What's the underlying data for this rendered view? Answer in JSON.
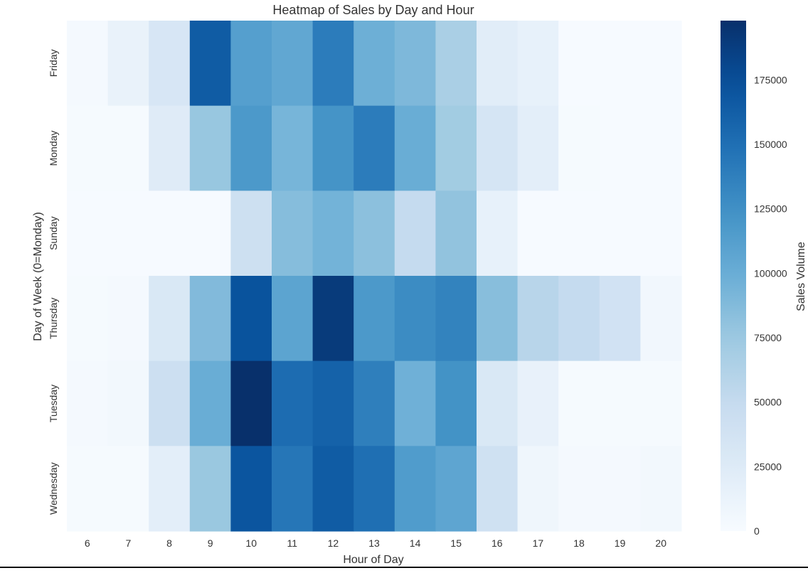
{
  "chart_data": {
    "type": "heatmap",
    "title": "Heatmap of Sales by Day and Hour",
    "xlabel": "Hour of Day",
    "ylabel": "Day of Week (0=Monday)",
    "x": [
      "6",
      "7",
      "8",
      "9",
      "10",
      "11",
      "12",
      "13",
      "14",
      "15",
      "16",
      "17",
      "18",
      "19",
      "20"
    ],
    "y": [
      "Friday",
      "Monday",
      "Sunday",
      "Thursday",
      "Tuesday",
      "Wednesday"
    ],
    "values": [
      [
        3000,
        14000,
        32000,
        165000,
        112000,
        105000,
        140000,
        98000,
        90000,
        67000,
        22000,
        16000,
        1000,
        1000,
        1000
      ],
      [
        2000,
        2000,
        24000,
        77000,
        118000,
        93000,
        122000,
        140000,
        100000,
        72000,
        34000,
        20000,
        2000,
        1000,
        1000
      ],
      [
        1000,
        1000,
        1000,
        1000,
        42000,
        86000,
        95000,
        83000,
        50000,
        80000,
        16000,
        1000,
        1000,
        1000,
        1000
      ],
      [
        2000,
        3000,
        30000,
        88000,
        172000,
        108000,
        190000,
        118000,
        128000,
        135000,
        85000,
        58000,
        50000,
        38000,
        6000
      ],
      [
        3000,
        5000,
        43000,
        100000,
        198000,
        152000,
        160000,
        138000,
        97000,
        123000,
        30000,
        15000,
        2000,
        2000,
        2000
      ],
      [
        2000,
        2000,
        20000,
        76000,
        170000,
        145000,
        165000,
        150000,
        115000,
        107000,
        40000,
        8000,
        3000,
        3000,
        5000
      ]
    ],
    "colorbar": {
      "label": "Sales Volume",
      "min": 0,
      "max": 198000,
      "ticks": [
        0,
        25000,
        50000,
        75000,
        100000,
        125000,
        150000,
        175000
      ],
      "colormap": "Blues"
    },
    "grid": false,
    "legend": "none"
  }
}
